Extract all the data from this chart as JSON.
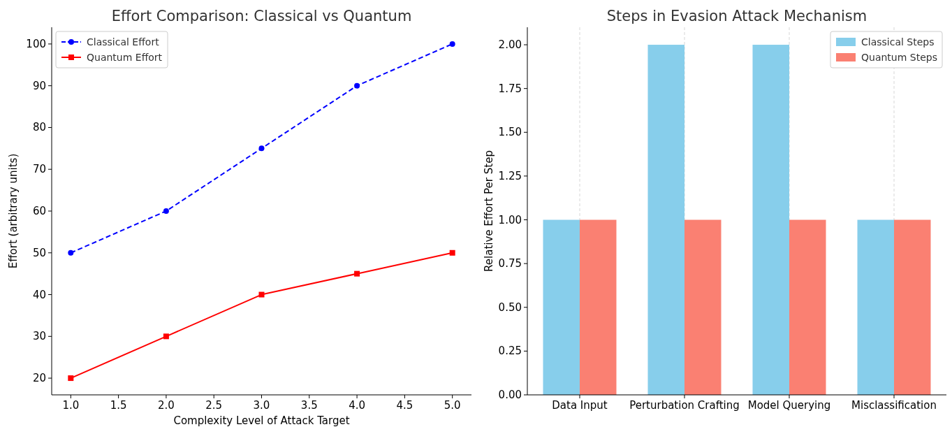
{
  "chart_data": [
    {
      "type": "line",
      "title": "Effort Comparison: Classical vs Quantum",
      "xlabel": "Complexity Level of Attack Target",
      "ylabel": "Effort (arbitrary units)",
      "x": [
        1,
        2,
        3,
        4,
        5
      ],
      "series": [
        {
          "name": "Classical Effort",
          "color": "#0000ff",
          "values": [
            50,
            60,
            75,
            90,
            100
          ],
          "marker": "circle",
          "line_style": "dashed"
        },
        {
          "name": "Quantum Effort",
          "color": "#ff0000",
          "values": [
            20,
            30,
            40,
            45,
            50
          ],
          "marker": "square",
          "line_style": "solid"
        }
      ],
      "xlim": [
        0.8,
        5.2
      ],
      "xticks": [
        {
          "value": 1,
          "label": "1.0"
        },
        {
          "value": 1.5,
          "label": "1.5"
        },
        {
          "value": 2,
          "label": "2.0"
        },
        {
          "value": 2.5,
          "label": "2.5"
        },
        {
          "value": 3,
          "label": "3.0"
        },
        {
          "value": 3.5,
          "label": "3.5"
        },
        {
          "value": 4,
          "label": "4.0"
        },
        {
          "value": 4.5,
          "label": "4.5"
        },
        {
          "value": 5,
          "label": "5.0"
        }
      ],
      "ylim": [
        16,
        104
      ],
      "yticks": [
        20,
        30,
        40,
        50,
        60,
        70,
        80,
        90,
        100
      ],
      "legend": "top left",
      "grid": false
    },
    {
      "type": "bar",
      "title": "Steps in Evasion Attack Mechanism",
      "ylabel": "Relative Effort Per Step",
      "categories": [
        "Data Input",
        "Perturbation Crafting",
        "Model Querying",
        "Misclassification"
      ],
      "series": [
        {
          "name": "Classical Steps",
          "color": "#87ceeb",
          "values": [
            1,
            2,
            2,
            1
          ]
        },
        {
          "name": "Quantum Steps",
          "color": "#fa8072",
          "values": [
            1,
            1,
            1,
            1
          ]
        }
      ],
      "ylim": [
        0,
        2.1
      ],
      "yticks": [
        {
          "value": 0,
          "label": "0.00"
        },
        {
          "value": 0.25,
          "label": "0.25"
        },
        {
          "value": 0.5,
          "label": "0.50"
        },
        {
          "value": 0.75,
          "label": "0.75"
        },
        {
          "value": 1,
          "label": "1.00"
        },
        {
          "value": 1.25,
          "label": "1.25"
        },
        {
          "value": 1.5,
          "label": "1.50"
        },
        {
          "value": 1.75,
          "label": "1.75"
        },
        {
          "value": 2,
          "label": "2.00"
        }
      ],
      "legend": "top right",
      "grid": "x"
    }
  ]
}
